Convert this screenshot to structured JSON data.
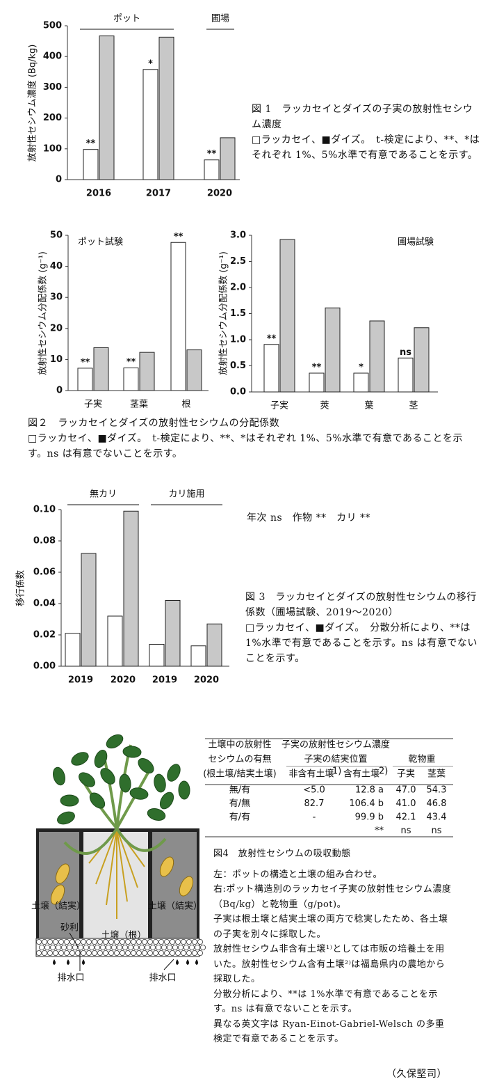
{
  "chart_data": [
    {
      "type": "bar",
      "ylabel": "放射性セシウム濃度 (Bq/kg)",
      "group_labels": [
        "ポット",
        "圃場"
      ],
      "categories": [
        "2016",
        "2017",
        "2020"
      ],
      "series": [
        {
          "color": "#ffffff",
          "values": [
            98,
            358,
            64
          ],
          "annotations": [
            "**",
            "*",
            "**"
          ]
        },
        {
          "color": "#c8c8c8",
          "values": [
            467,
            463,
            136
          ]
        }
      ],
      "ylim": [
        0,
        500
      ],
      "yticks": [
        0,
        100,
        200,
        300,
        400,
        500
      ]
    },
    {
      "type": "bar",
      "ylabel": "放射性セシウム分配係数 (g⁻¹)",
      "note": "ポット試験",
      "categories": [
        "子実",
        "茎葉",
        "根"
      ],
      "series": [
        {
          "color": "#ffffff",
          "values": [
            7.2,
            7.3,
            47.7
          ],
          "annotations": [
            "**",
            "**",
            "**"
          ]
        },
        {
          "color": "#c8c8c8",
          "values": [
            13.8,
            12.3,
            13.1
          ]
        }
      ],
      "ylim": [
        0,
        50
      ],
      "yticks": [
        0,
        10,
        20,
        30,
        40,
        50
      ]
    },
    {
      "type": "bar",
      "ylabel": "放射性セシウム分配係数 (g⁻¹)",
      "note": "圃場試験",
      "categories": [
        "子実",
        "莢",
        "葉",
        "茎"
      ],
      "series": [
        {
          "color": "#ffffff",
          "values": [
            0.91,
            0.36,
            0.36,
            0.65
          ],
          "annotations": [
            "**",
            "**",
            "*",
            "ns"
          ]
        },
        {
          "color": "#c8c8c8",
          "values": [
            2.92,
            1.61,
            1.36,
            1.23
          ]
        }
      ],
      "ylim": [
        0,
        3
      ],
      "yticks": [
        {
          "value": 0,
          "label": "0.0"
        },
        0.5,
        {
          "value": 1,
          "label": "1.0"
        },
        1.5,
        {
          "value": 2,
          "label": "2.0"
        },
        2.5,
        {
          "value": 3,
          "label": "3.0"
        }
      ]
    },
    {
      "type": "bar",
      "ylabel": "移行係数",
      "group_labels": [
        "無カリ",
        "カリ施用"
      ],
      "categories": [
        "2019",
        "2020",
        "2019",
        "2020"
      ],
      "series": [
        {
          "color": "#ffffff",
          "values": [
            0.021,
            0.032,
            0.014,
            0.013
          ]
        },
        {
          "color": "#c8c8c8",
          "values": [
            0.072,
            0.099,
            0.042,
            0.027
          ]
        }
      ],
      "ylim": [
        0,
        0.1
      ],
      "yticks": [
        {
          "value": 0,
          "label": "0.00"
        },
        {
          "value": 0.02,
          "label": "0.02"
        },
        {
          "value": 0.04,
          "label": "0.04"
        },
        {
          "value": 0.06,
          "label": "0.06"
        },
        {
          "value": 0.08,
          "label": "0.08"
        },
        {
          "value": 0.1,
          "label": "0.10"
        }
      ]
    }
  ],
  "figure1": {
    "title": "図 1　ラッカセイとダイズの子実の放射性セシウム濃度",
    "body": "□ラッカセイ、■ダイズ。　t-検定により、**、*はそれぞれ 1%、5%水準で有意であることを示す。"
  },
  "figure2": {
    "title": "図２　ラッカセイとダイズの放射性セシウムの分配係数",
    "body": "□ラッカセイ、■ダイズ。　t-検定により、**、*はそれぞれ 1%、5%水準で有意であることを示す。ns は有意でないことを示す。"
  },
  "figure3": {
    "anova": "年次 ns　作物 **　カリ **",
    "title": "図 3　ラッカセイとダイズの放射性セシウムの移行係数（圃場試験、2019～2020）",
    "body": "□ラッカセイ、■ダイズ。　分散分析により、**は 1%水準で有意であることを示す。ns は有意でないことを示す。"
  },
  "figure4": {
    "diagram_labels": {
      "left_soil": "土壌（結実）",
      "right_soil": "土壌（結実）",
      "gravel": "砂利",
      "root_soil": "土壌（根）",
      "left_drain": "排水口",
      "right_drain": "排水口"
    },
    "table": {
      "header": [
        [
          "土壌中の放射性",
          "子実の放射性セシウム濃度"
        ],
        [
          "セシウムの有無",
          "子実の結実位置",
          "乾物重"
        ],
        [
          "(根土壌/結実土壌)",
          "非含有土壌",
          "含有土壌",
          "子実",
          "茎葉"
        ]
      ],
      "header_notes": [
        "1)",
        "2)"
      ],
      "rows": [
        [
          "無/有",
          "<5.0",
          "12.8 a",
          "47.0",
          "54.3"
        ],
        [
          "有/無",
          "82.7",
          "106.4 b",
          "41.0",
          "46.8"
        ],
        [
          "有/有",
          "-",
          "99.9 b",
          "42.1",
          "43.4"
        ],
        [
          null,
          null,
          "**",
          "ns",
          "ns"
        ]
      ]
    },
    "title": "図4　放射性セシウムの吸収動態",
    "paragraphs": [
      "左：ポットの構造と土壌の組み合わせ。",
      "右:ポット構造別のラッカセイ子実の放射性セシウム濃度（Bq/kg）と乾物重（g/pot)。",
      "子実は根土壌と結実土壌の両方で稔実したため、各土壌の子実を別々に採取した。",
      "放射性セシウム非含有土壌¹⁾としては市販の培養土を用いた。放射性セシウム含有土壌²⁾は福島県内の農地から採取した。",
      "分散分析により、**は 1%水準で有意であることを示す。ns は有意でないことを示す。",
      "異なる英文字は Ryan-Einot-Gabriel-Welsch の多重検定で有意であることを示す。"
    ]
  },
  "author": "（久保堅司）"
}
